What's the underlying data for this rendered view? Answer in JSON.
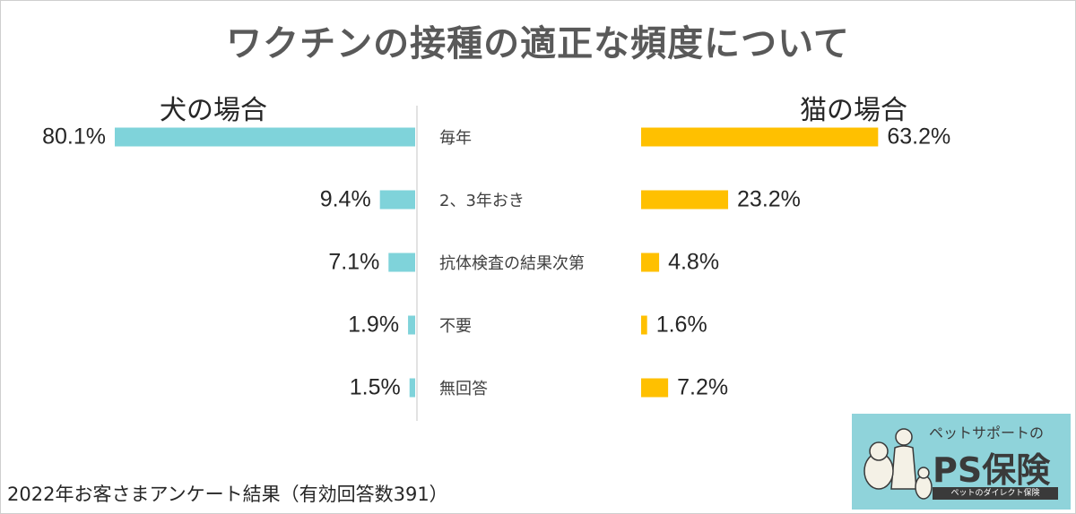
{
  "title": "ワクチンの接種の適正な頻度について",
  "dog_label": "犬の場合",
  "cat_label": "猫の場合",
  "footer": "2022年お客さまアンケート結果（有効回答数391）",
  "logo": {
    "small_text": "ペットサポートの",
    "big_text": "PS保険",
    "sub_text": "ペットのダイレクト保険"
  },
  "colors": {
    "dog": "#7fd3da",
    "cat": "#ffc000"
  },
  "chart_data": {
    "type": "bar",
    "title": "ワクチンの接種の適正な頻度について",
    "categories": [
      "毎年",
      "2、3年おき",
      "抗体検査の結果次第",
      "不要",
      "無回答"
    ],
    "series": [
      {
        "name": "犬の場合",
        "values": [
          80.1,
          9.4,
          7.1,
          1.9,
          1.5
        ],
        "labels": [
          "80.1%",
          "9.4%",
          "7.1%",
          "1.9%",
          "1.5%"
        ]
      },
      {
        "name": "猫の場合",
        "values": [
          63.2,
          23.2,
          4.8,
          1.6,
          7.2
        ],
        "labels": [
          "63.2%",
          "23.2%",
          "4.8%",
          "1.6%",
          "7.2%"
        ]
      }
    ],
    "unit": "%",
    "xlim": [
      0,
      100
    ],
    "legend": "none",
    "grid": false
  }
}
